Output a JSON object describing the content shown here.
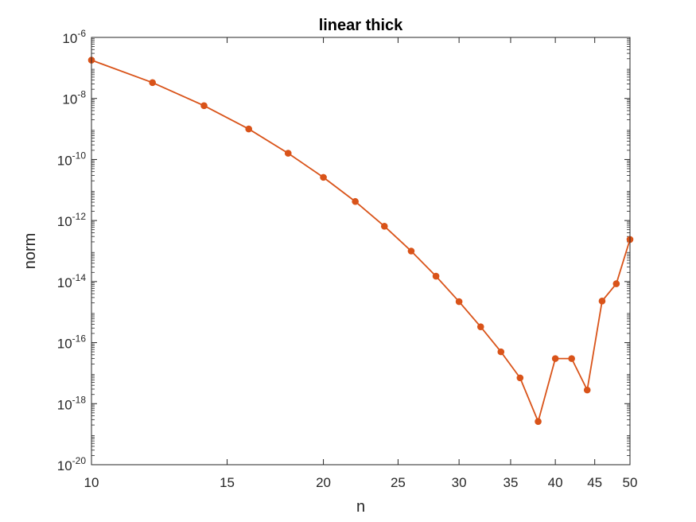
{
  "chart_data": {
    "type": "line",
    "title": "linear thick",
    "xlabel": "n",
    "ylabel": "norm",
    "x_scale": "log",
    "y_scale": "log",
    "xlim": [
      10,
      50
    ],
    "ylim_exponents": [
      -20,
      -6
    ],
    "x_ticks": [
      {
        "value": 10,
        "label": "10"
      },
      {
        "value": 15,
        "label": "15"
      },
      {
        "value": 20,
        "label": "20"
      },
      {
        "value": 25,
        "label": "25"
      },
      {
        "value": 30,
        "label": "30"
      },
      {
        "value": 35,
        "label": "35"
      },
      {
        "value": 40,
        "label": "40"
      },
      {
        "value": 45,
        "label": "45"
      },
      {
        "value": 50,
        "label": "50"
      }
    ],
    "y_ticks": [
      {
        "exponent": -6,
        "base": "10",
        "power": "-6"
      },
      {
        "exponent": -8,
        "base": "10",
        "power": "-8"
      },
      {
        "exponent": -10,
        "base": "10",
        "power": "-10"
      },
      {
        "exponent": -12,
        "base": "10",
        "power": "-12"
      },
      {
        "exponent": -14,
        "base": "10",
        "power": "-14"
      },
      {
        "exponent": -16,
        "base": "10",
        "power": "-16"
      },
      {
        "exponent": -18,
        "base": "10",
        "power": "-18"
      },
      {
        "exponent": -20,
        "base": "10",
        "power": "-20"
      }
    ],
    "grid": false,
    "series": [
      {
        "color": "#D95319",
        "marker": "dot",
        "points": [
          {
            "x": 10,
            "y": 1.8e-07
          },
          {
            "x": 12,
            "y": 3.3e-08
          },
          {
            "x": 14,
            "y": 5.8e-09
          },
          {
            "x": 16,
            "y": 1e-09
          },
          {
            "x": 18,
            "y": 1.6e-10
          },
          {
            "x": 20,
            "y": 2.6e-11
          },
          {
            "x": 22,
            "y": 4.2e-12
          },
          {
            "x": 24,
            "y": 6.5e-13
          },
          {
            "x": 26,
            "y": 1e-13
          },
          {
            "x": 28,
            "y": 1.5e-14
          },
          {
            "x": 30,
            "y": 2.2e-15
          },
          {
            "x": 32,
            "y": 3.3e-16
          },
          {
            "x": 34,
            "y": 5e-17
          },
          {
            "x": 36,
            "y": 7e-18
          },
          {
            "x": 38,
            "y": 2.6e-19
          },
          {
            "x": 40,
            "y": 3e-17
          },
          {
            "x": 42,
            "y": 3e-17
          },
          {
            "x": 44,
            "y": 2.8e-18
          },
          {
            "x": 46,
            "y": 2.3e-15
          },
          {
            "x": 48,
            "y": 8.5e-15
          },
          {
            "x": 50,
            "y": 2.4e-13
          }
        ]
      }
    ]
  }
}
